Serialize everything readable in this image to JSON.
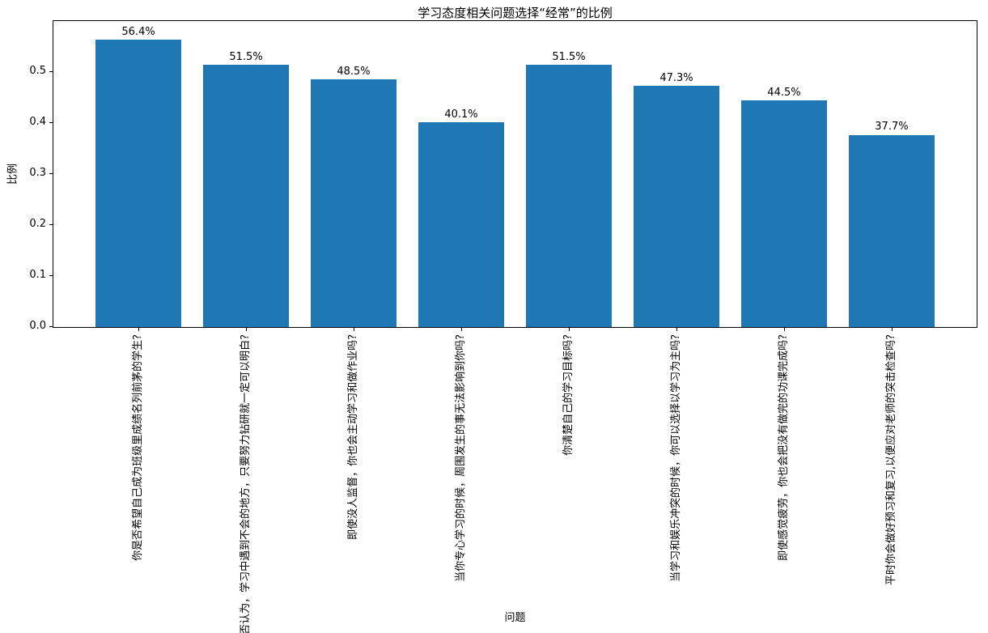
{
  "chart_data": {
    "type": "bar",
    "title": "学习态度相关问题选择“经常”的比例",
    "xlabel": "问题",
    "ylabel": "比例",
    "categories": [
      "你是否希望自己成为班级里成绩名列前茅的学生?",
      "你是否认为，学习中遇到不会的地方，只要努力钻研就一定可以明白?",
      "即使没人监督，你也会主动学习和做作业吗?",
      "当你专心学习的时候，周围发生的事无法影响到你吗?",
      "你清楚自己的学习目标吗?",
      "当学习和娱乐冲突的时候，你可以选择以学习为主吗?",
      "即使感觉疲劳，你也会把没有做完的功课完成吗?",
      "平时你会做好预习和复习,以便应对老师的突击检查吗?"
    ],
    "values": [
      0.564,
      0.515,
      0.485,
      0.401,
      0.515,
      0.473,
      0.445,
      0.377
    ],
    "bar_labels": [
      "56.4%",
      "51.5%",
      "48.5%",
      "40.1%",
      "51.5%",
      "47.3%",
      "44.5%",
      "37.7%"
    ],
    "yticks": [
      0.0,
      0.1,
      0.2,
      0.3,
      0.4,
      0.5
    ],
    "ytick_labels": [
      "0.0",
      "0.1",
      "0.2",
      "0.3",
      "0.4",
      "0.5"
    ],
    "ylim": [
      0,
      0.6
    ],
    "xlim": [
      -0.79,
      7.79
    ],
    "bar_width": 0.8,
    "bar_color": "#1f77b4",
    "grid": false,
    "legend": null
  }
}
